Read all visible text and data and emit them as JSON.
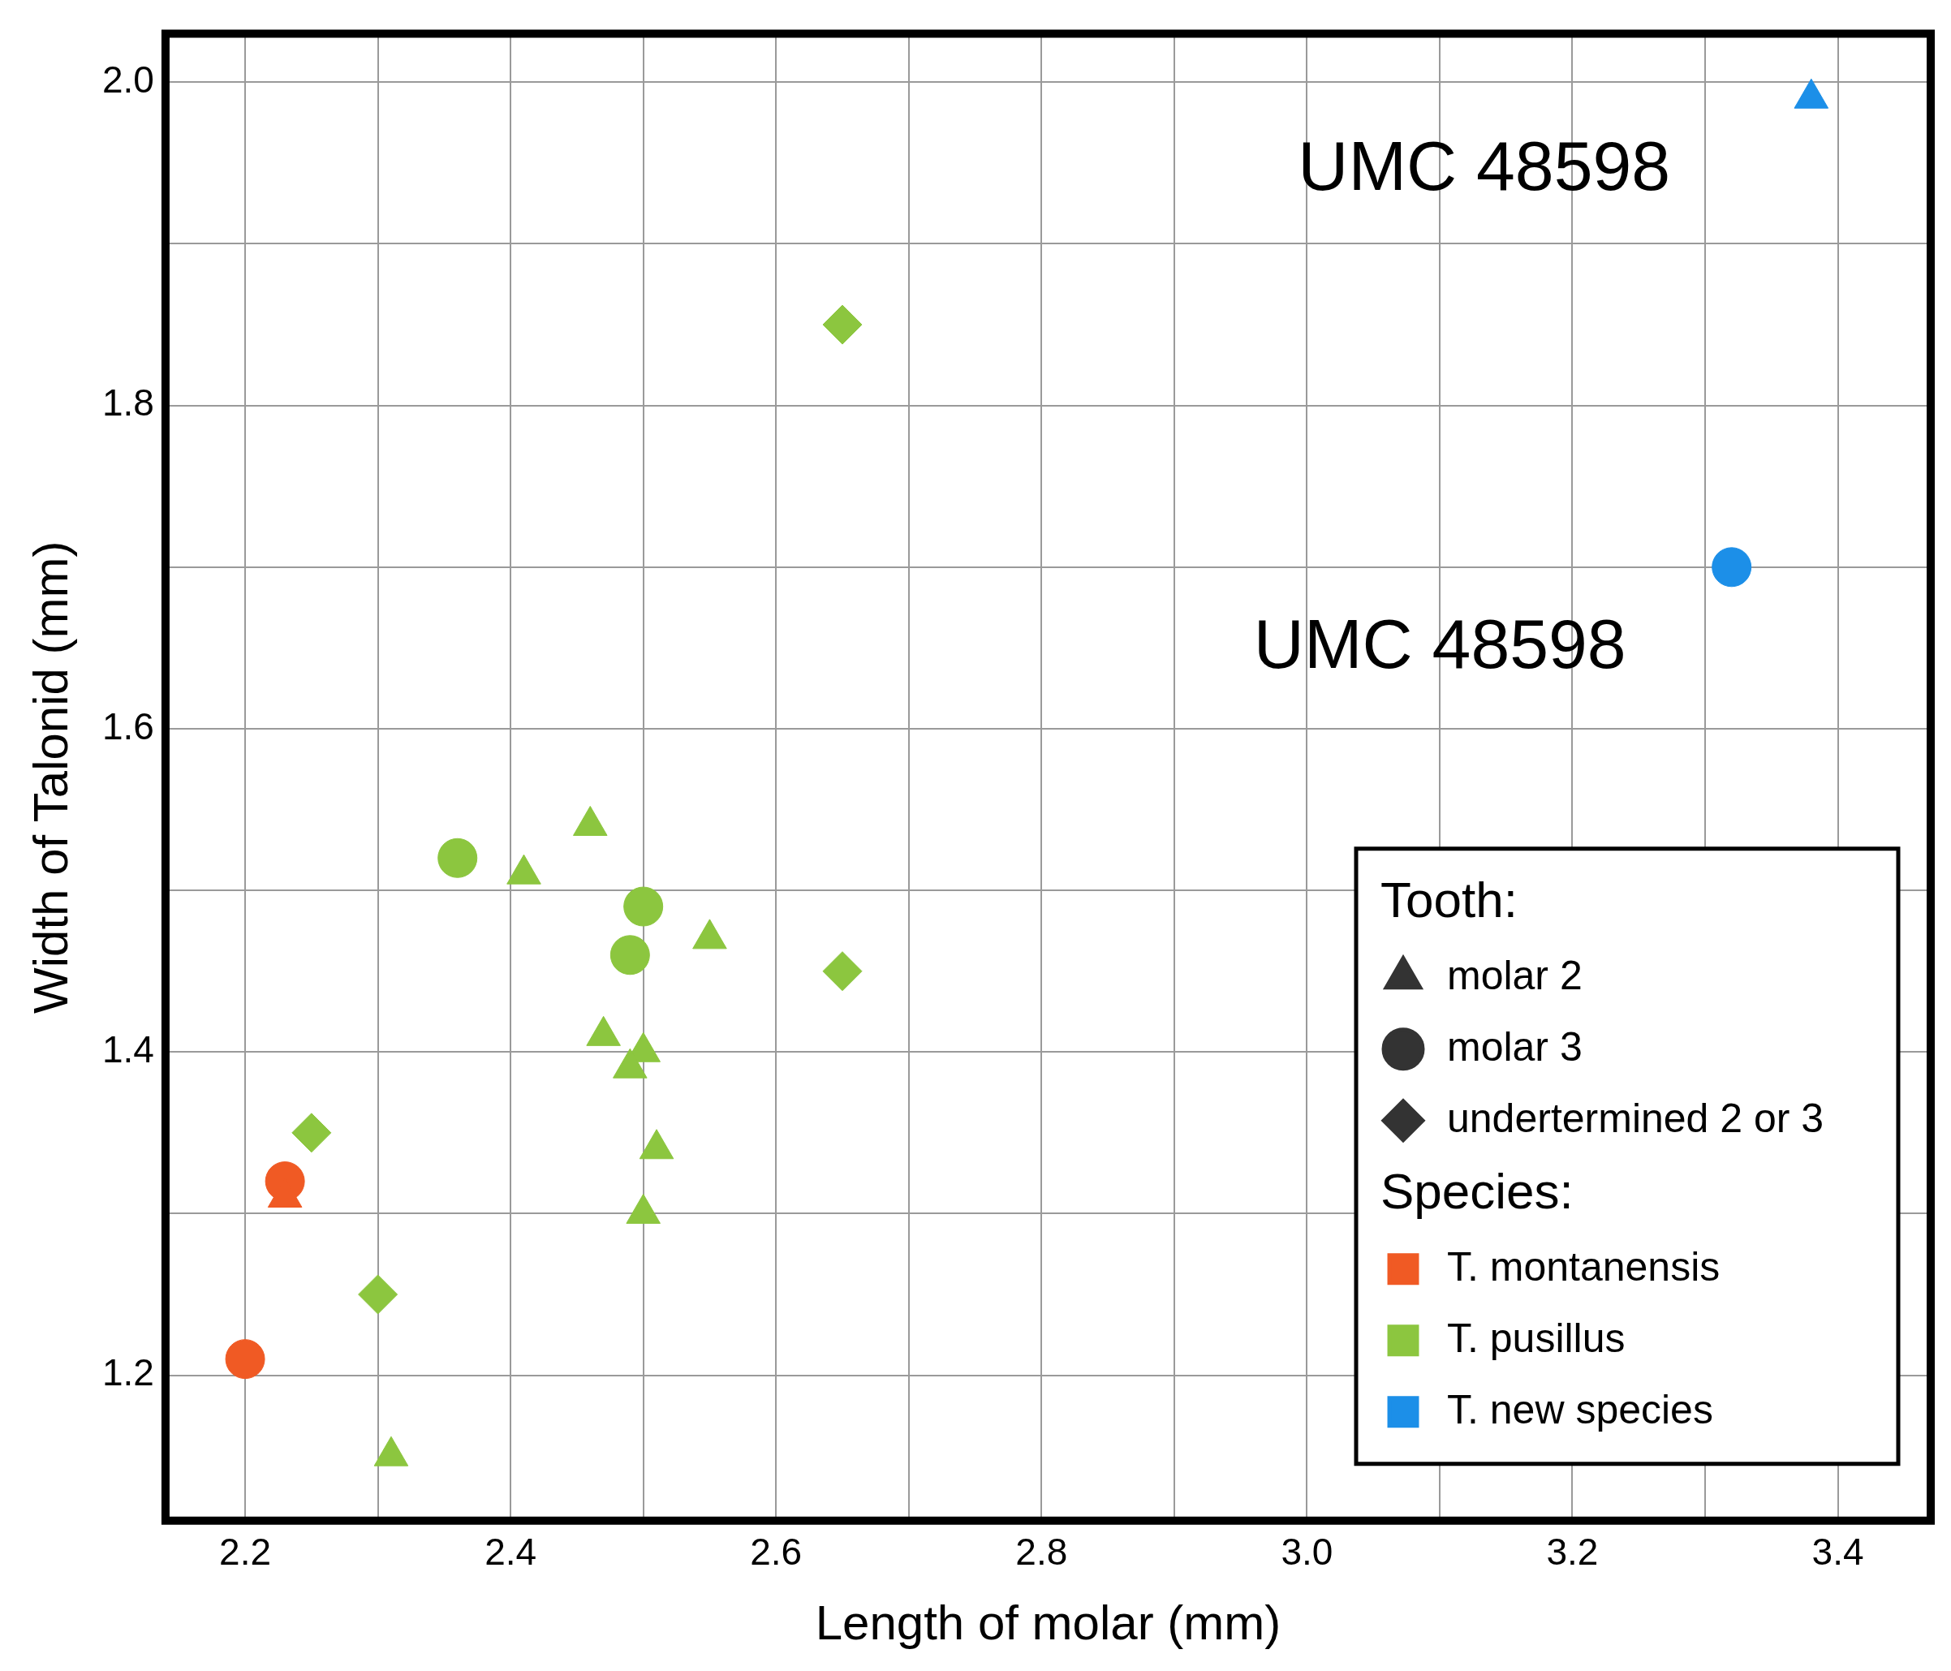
{
  "chart_data": {
    "type": "scatter",
    "xlabel": "Length of molar (mm)",
    "ylabel": "Width of Talonid (mm)",
    "xlim": [
      2.14,
      3.47
    ],
    "ylim": [
      1.11,
      2.03
    ],
    "xticks": [
      {
        "value": 2.2,
        "label": "2.2"
      },
      {
        "value": 2.3,
        "label": null
      },
      {
        "value": 2.4,
        "label": "2.4"
      },
      {
        "value": 2.5,
        "label": null
      },
      {
        "value": 2.6,
        "label": "2.6"
      },
      {
        "value": 2.7,
        "label": null
      },
      {
        "value": 2.8,
        "label": "2.8"
      },
      {
        "value": 2.9,
        "label": null
      },
      {
        "value": 3.0,
        "label": "3.0"
      },
      {
        "value": 3.1,
        "label": null
      },
      {
        "value": 3.2,
        "label": "3.2"
      },
      {
        "value": 3.3,
        "label": null
      },
      {
        "value": 3.4,
        "label": "3.4"
      }
    ],
    "yticks": [
      {
        "value": 1.2,
        "label": "1.2"
      },
      {
        "value": 1.3,
        "label": null
      },
      {
        "value": 1.4,
        "label": "1.4"
      },
      {
        "value": 1.5,
        "label": null
      },
      {
        "value": 1.6,
        "label": "1.6"
      },
      {
        "value": 1.7,
        "label": null
      },
      {
        "value": 1.8,
        "label": "1.8"
      },
      {
        "value": 1.9,
        "label": null
      },
      {
        "value": 2.0,
        "label": "2.0"
      }
    ],
    "grid": true,
    "legend": "bottom right",
    "legend_title": "Tooth:",
    "annotations": [
      "UMC 48598",
      {
        "text": "UMC 48598",
        "x": 3.32,
        "y": 1.7
      },
      "Species:"
    ],
    "series": [
      {
        "color": "#f05a24",
        "marker": "triangle",
        "x": [
          2.23
        ],
        "values": [
          1.31
        ]
      },
      {
        "color": "#f05a24",
        "marker": "circle",
        "x": [
          2.23,
          2.2
        ],
        "values": [
          1.32,
          1.21
        ]
      },
      {
        "color": "#8cc63f",
        "marker": "triangle",
        "x": [
          2.46,
          2.41,
          2.55,
          2.47,
          2.5,
          2.49,
          2.51,
          2.5,
          2.31
        ],
        "values": [
          1.54,
          1.51,
          1.47,
          1.41,
          1.4,
          1.39,
          1.34,
          1.3,
          1.15
        ]
      },
      {
        "color": "#8cc63f",
        "marker": "circle",
        "x": [
          2.36,
          2.5,
          2.49
        ],
        "values": [
          1.52,
          1.49,
          1.46
        ]
      },
      {
        "color": "#8cc63f",
        "marker": "diamond",
        "x": [
          2.65,
          2.65,
          2.25,
          2.3
        ],
        "values": [
          1.85,
          1.45,
          1.35,
          1.25
        ]
      },
      {
        "color": "#1c8fe8",
        "marker": "triangle",
        "x": [
          3.38
        ],
        "values": [
          1.99
        ]
      },
      {
        "color": "#1c8fe8",
        "marker": "circle",
        "x": [
          3.32
        ],
        "values": [
          1.7
        ]
      },
      {
        "name": "molar 2",
        "color": "#333333",
        "marker": "triangle"
      },
      {
        "name": "molar 3",
        "color": "#333333",
        "marker": "circle"
      },
      {
        "name": "undertermined 2 or 3",
        "color": "#333333",
        "marker": "diamond"
      },
      {
        "name": "T. montanensis",
        "color": "#f05a24",
        "marker": "square"
      },
      {
        "name": "T. pusillus",
        "color": "#8cc63f",
        "marker": "square"
      },
      {
        "name": "T. new species",
        "color": "#1c8fe8",
        "marker": "square"
      }
    ]
  }
}
